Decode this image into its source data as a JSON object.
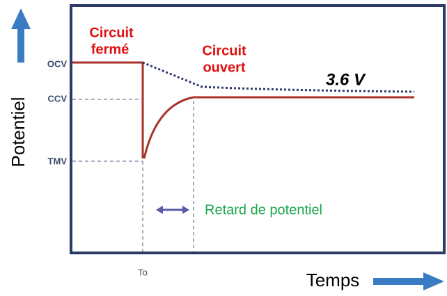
{
  "y_axis": {
    "label": "Potentiel",
    "levels": [
      "OCV",
      "CCV",
      "TMV"
    ]
  },
  "x_axis": {
    "label": "Temps",
    "time_label": "To"
  },
  "annotations": {
    "closed_circuit": [
      "Circuit",
      "fermé"
    ],
    "open_circuit": [
      "Circuit",
      "ouvert"
    ],
    "voltage": "3.6 V",
    "delay": "Retard de potentiel"
  }
}
